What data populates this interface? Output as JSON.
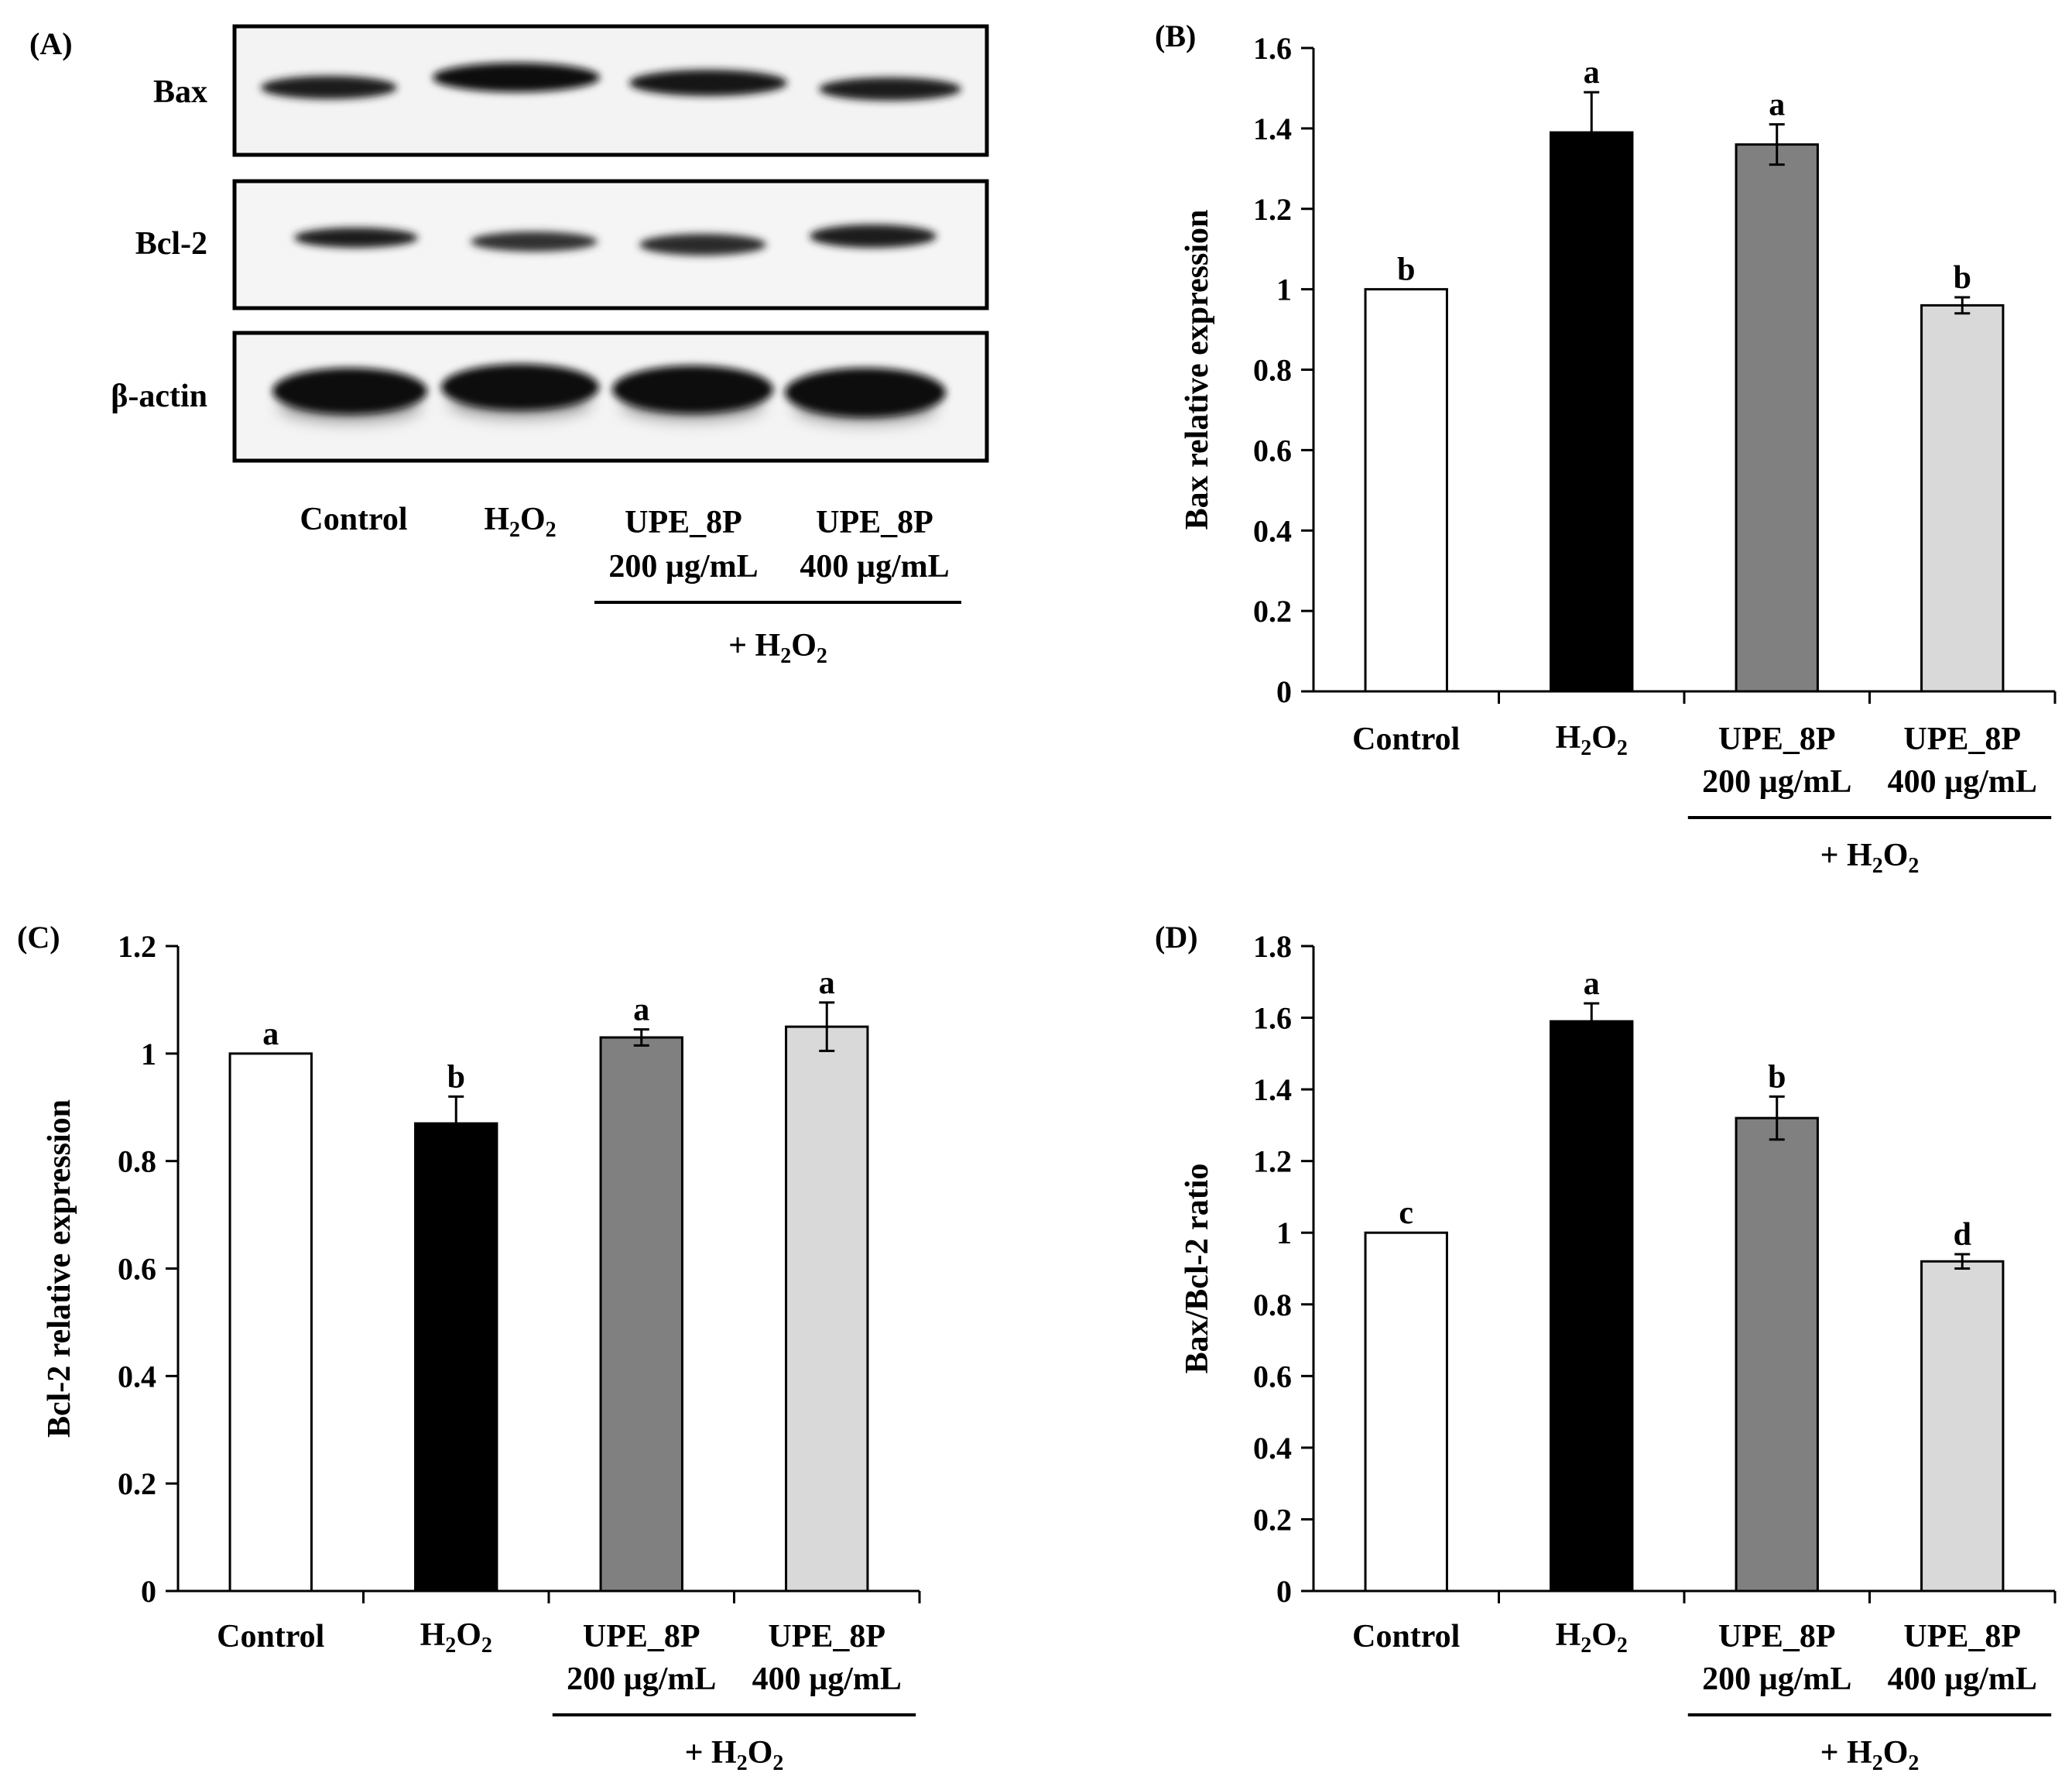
{
  "panel_labels": [
    "(A)",
    "(B)",
    "(C)",
    "(D)"
  ],
  "categories": {
    "control": "Control",
    "h2o2": {
      "main": "H",
      "sub1": "2",
      "mid": "O",
      "sub2": "2"
    },
    "upe200": {
      "line1": "UPE_8P",
      "line2": "200 µg/mL"
    },
    "upe400": {
      "line1": "UPE_8P",
      "line2": "400 µg/mL"
    },
    "group": {
      "prefix": "+ H",
      "sub1": "2",
      "mid": "O",
      "sub2": "2"
    }
  },
  "blot": {
    "rows": [
      "Bax",
      "Bcl-2",
      "β-actin"
    ]
  },
  "colors": {
    "control": "#ffffff",
    "h2o2": "#000000",
    "upe200": "#808080",
    "upe400": "#d9d9d9"
  },
  "chart_data": [
    {
      "panel": "(B)",
      "type": "bar",
      "ylabel": "Bax relative expression",
      "ylim": [
        0,
        1.6
      ],
      "yticks": [
        "0",
        "0.2",
        "0.4",
        "0.6",
        "0.8",
        "1",
        "1.2",
        "1.4",
        "1.6"
      ],
      "categories": [
        "Control",
        "H2O2",
        "UPE_8P 200 µg/mL",
        "UPE_8P 400 µg/mL"
      ],
      "values": [
        1.0,
        1.39,
        1.36,
        0.96
      ],
      "errors": [
        0,
        0.1,
        0.05,
        0.02
      ],
      "significance": [
        "b",
        "a",
        "a",
        "b"
      ]
    },
    {
      "panel": "(C)",
      "type": "bar",
      "ylabel": "Bcl-2 relative expression",
      "ylim": [
        0,
        1.2
      ],
      "yticks": [
        "0",
        "0.2",
        "0.4",
        "0.6",
        "0.8",
        "1",
        "1.2"
      ],
      "categories": [
        "Control",
        "H2O2",
        "UPE_8P 200 µg/mL",
        "UPE_8P 400 µg/mL"
      ],
      "values": [
        1.0,
        0.87,
        1.03,
        1.05
      ],
      "errors": [
        0,
        0.05,
        0.015,
        0.045
      ],
      "significance": [
        "a",
        "b",
        "a",
        "a"
      ]
    },
    {
      "panel": "(D)",
      "type": "bar",
      "ylabel": "Bax/Bcl-2 ratio",
      "ylim": [
        0,
        1.8
      ],
      "yticks": [
        "0",
        "0.2",
        "0.4",
        "0.6",
        "0.8",
        "1",
        "1.2",
        "1.4",
        "1.6",
        "1.8"
      ],
      "categories": [
        "Control",
        "H2O2",
        "UPE_8P 200 µg/mL",
        "UPE_8P 400 µg/mL"
      ],
      "values": [
        1.0,
        1.59,
        1.32,
        0.92
      ],
      "errors": [
        0,
        0.05,
        0.06,
        0.02
      ],
      "significance": [
        "c",
        "a",
        "b",
        "d"
      ]
    }
  ]
}
